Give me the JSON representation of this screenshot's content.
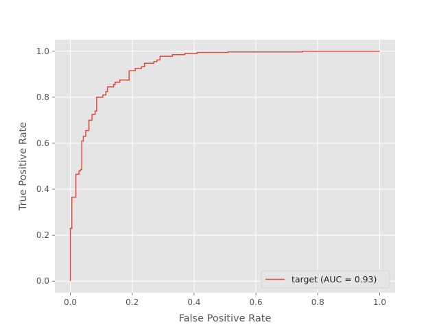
{
  "chart_data": {
    "type": "line",
    "style": "ggplot",
    "xlabel": "False Positive Rate",
    "ylabel": "True Positive Rate",
    "xlim": [
      -0.05,
      1.05
    ],
    "ylim": [
      -0.05,
      1.05
    ],
    "xticks": [
      0.0,
      0.2,
      0.4,
      0.6,
      0.8,
      1.0
    ],
    "yticks": [
      0.0,
      0.2,
      0.4,
      0.6,
      0.8,
      1.0
    ],
    "xtick_labels": [
      "0.0",
      "0.2",
      "0.4",
      "0.6",
      "0.8",
      "1.0"
    ],
    "ytick_labels": [
      "0.0",
      "0.2",
      "0.4",
      "0.6",
      "0.8",
      "1.0"
    ],
    "grid": true,
    "legend_position": "lower-right",
    "series": [
      {
        "name": "target (AUC = 0.93)",
        "color": "#e24a33",
        "drawstyle": "step",
        "x": [
          0.0,
          0.0,
          0.005,
          0.005,
          0.018,
          0.018,
          0.028,
          0.028,
          0.033,
          0.033,
          0.037,
          0.037,
          0.042,
          0.042,
          0.05,
          0.05,
          0.06,
          0.06,
          0.07,
          0.07,
          0.08,
          0.08,
          0.085,
          0.085,
          0.105,
          0.105,
          0.115,
          0.115,
          0.12,
          0.12,
          0.14,
          0.14,
          0.145,
          0.145,
          0.16,
          0.16,
          0.19,
          0.19,
          0.21,
          0.21,
          0.23,
          0.23,
          0.24,
          0.24,
          0.27,
          0.27,
          0.28,
          0.28,
          0.29,
          0.29,
          0.33,
          0.33,
          0.37,
          0.37,
          0.41,
          0.41,
          0.51,
          0.51,
          0.75,
          0.75,
          1.0
        ],
        "y": [
          0.0,
          0.23,
          0.23,
          0.365,
          0.365,
          0.465,
          0.465,
          0.48,
          0.48,
          0.485,
          0.485,
          0.61,
          0.61,
          0.63,
          0.63,
          0.655,
          0.655,
          0.7,
          0.7,
          0.725,
          0.725,
          0.74,
          0.74,
          0.8,
          0.8,
          0.81,
          0.81,
          0.825,
          0.825,
          0.845,
          0.845,
          0.855,
          0.855,
          0.865,
          0.865,
          0.875,
          0.875,
          0.915,
          0.915,
          0.925,
          0.925,
          0.933,
          0.933,
          0.948,
          0.948,
          0.955,
          0.955,
          0.962,
          0.962,
          0.978,
          0.978,
          0.985,
          0.985,
          0.99,
          0.99,
          0.995,
          0.995,
          0.997,
          0.997,
          1.0,
          1.0
        ]
      }
    ]
  }
}
